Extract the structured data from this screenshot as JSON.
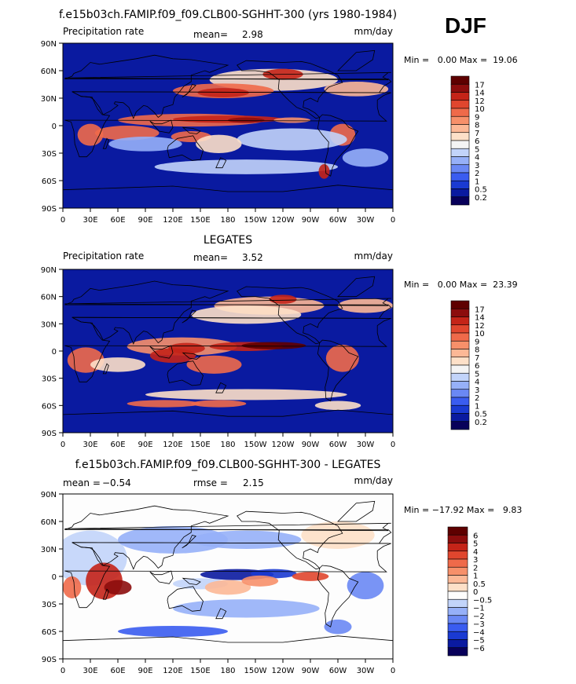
{
  "season": "DJF",
  "panels": [
    {
      "title": "f.e15b03ch.FAMIP.f09_f09.CLB00-SGHHT-300 (yrs 1980-1984)",
      "field_label": "Precipitation rate",
      "stat_label": "mean=",
      "stat_value": "2.98",
      "units": "mm/day",
      "range_text": "Min =   0.00 Max =  19.06",
      "colorbar_labels": [
        "17",
        "14",
        "12",
        "10",
        "9",
        "8",
        "7",
        "6",
        "5",
        "4",
        "3",
        "2",
        "1",
        "0.5",
        "0.2"
      ]
    },
    {
      "title": "LEGATES",
      "field_label": "Precipitation rate",
      "stat_label": "mean=",
      "stat_value": "3.52",
      "units": "mm/day",
      "range_text": "Min =   0.00 Max =  23.39",
      "colorbar_labels": [
        "17",
        "14",
        "12",
        "10",
        "9",
        "8",
        "7",
        "6",
        "5",
        "4",
        "3",
        "2",
        "1",
        "0.5",
        "0.2"
      ]
    },
    {
      "title": "f.e15b03ch.FAMIP.f09_f09.CLB00-SGHHT-300 - LEGATES",
      "stat_label": "mean =",
      "stat_value": "−0.54",
      "stat2_label": "rmse =",
      "stat2_value": "2.15",
      "units": "mm/day",
      "range_text": "Min = −17.92 Max =   9.83",
      "colorbar_labels": [
        "6",
        "5",
        "4",
        "3",
        "2",
        "1",
        "0.5",
        "0",
        "−0.5",
        "−1",
        "−2",
        "−3",
        "−4",
        "−5",
        "−6"
      ]
    }
  ],
  "lat_labels": [
    "90N",
    "60N",
    "30N",
    "0",
    "30S",
    "60S",
    "90S"
  ],
  "lon_labels": [
    "0",
    "30E",
    "60E",
    "90E",
    "120E",
    "150E",
    "180",
    "150W",
    "120W",
    "90W",
    "60W",
    "30W",
    "0"
  ],
  "colors": {
    "precip_scale": [
      "#08005a",
      "#0a1aa0",
      "#1a3ad2",
      "#3a5cf0",
      "#6a88f4",
      "#96b0f8",
      "#c2d4fa",
      "#f4f4f4",
      "#fde0c8",
      "#fcb896",
      "#f7906a",
      "#ef6a4a",
      "#e0462e",
      "#c42418",
      "#8c0d0d",
      "#5e0000"
    ],
    "diff_scale": [
      "#08005a",
      "#0a1aa0",
      "#1a3ad2",
      "#3a5cf0",
      "#6a88f4",
      "#96b0f8",
      "#c2d4fa",
      "#fdfdfd",
      "#fde0c8",
      "#fcb896",
      "#f7906a",
      "#ef6a4a",
      "#e0462e",
      "#c42418",
      "#8c0d0d",
      "#5e0000"
    ]
  },
  "chart_data": [
    {
      "type": "heatmap",
      "title": "f.e15b03ch.FAMIP.f09_f09.CLB00-SGHHT-300 (yrs 1980-1984)",
      "variable": "Precipitation rate",
      "units": "mm/day",
      "mean": 2.98,
      "min": 0.0,
      "max": 19.06,
      "xlim": [
        0,
        360
      ],
      "ylim": [
        -90,
        90
      ],
      "levels": [
        0.2,
        0.5,
        1,
        2,
        3,
        4,
        5,
        6,
        7,
        8,
        9,
        10,
        12,
        14,
        17
      ]
    },
    {
      "type": "heatmap",
      "title": "LEGATES",
      "variable": "Precipitation rate",
      "units": "mm/day",
      "mean": 3.52,
      "min": 0.0,
      "max": 23.39,
      "xlim": [
        0,
        360
      ],
      "ylim": [
        -90,
        90
      ],
      "levels": [
        0.2,
        0.5,
        1,
        2,
        3,
        4,
        5,
        6,
        7,
        8,
        9,
        10,
        12,
        14,
        17
      ]
    },
    {
      "type": "heatmap",
      "title": "f.e15b03ch.FAMIP.f09_f09.CLB00-SGHHT-300 - LEGATES",
      "units": "mm/day",
      "mean": -0.54,
      "rmse": 2.15,
      "min": -17.92,
      "max": 9.83,
      "xlim": [
        0,
        360
      ],
      "ylim": [
        -90,
        90
      ],
      "levels": [
        -6,
        -5,
        -4,
        -3,
        -2,
        -1,
        -0.5,
        0,
        0.5,
        1,
        2,
        3,
        4,
        5,
        6
      ]
    }
  ]
}
